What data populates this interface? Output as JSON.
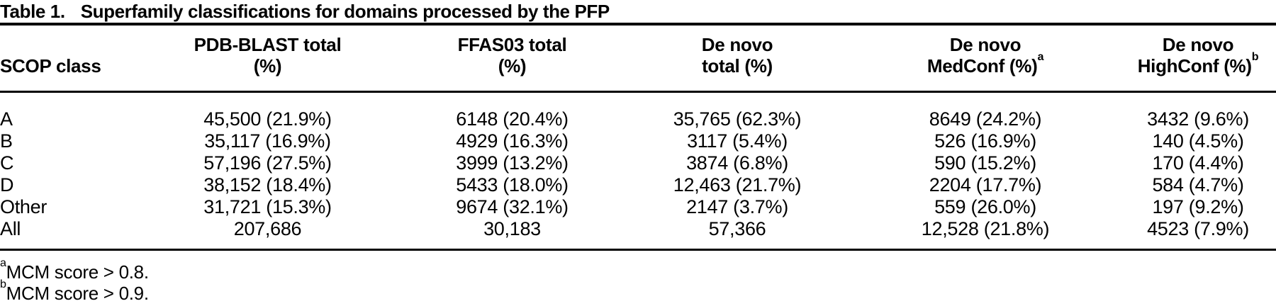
{
  "colors": {
    "background": "#ffffff",
    "text": "#000000",
    "rule": "#000000"
  },
  "title": {
    "label": "Table 1.",
    "text": "Superfamily classifications for domains processed by the PFP"
  },
  "table": {
    "header": {
      "scop": {
        "line2": "SCOP class"
      },
      "pdb": {
        "line1": "PDB-BLAST total",
        "line2": "(%)"
      },
      "ffas": {
        "line1": "FFAS03 total",
        "line2": "(%)"
      },
      "dn_total": {
        "line1": "De novo",
        "line2": "total (%)"
      },
      "dn_med": {
        "line1": "De novo",
        "line2": "MedConf (%)",
        "sup": "a"
      },
      "dn_high": {
        "line1": "De novo",
        "line2": "HighConf (%)",
        "sup": "b"
      }
    },
    "rows": [
      {
        "scop": "A",
        "pdb": "45,500 (21.9%)",
        "ffas": "6148 (20.4%)",
        "dn_total": "35,765 (62.3%)",
        "dn_med": "8649 (24.2%)",
        "dn_high": "3432 (9.6%)"
      },
      {
        "scop": "B",
        "pdb": "35,117 (16.9%)",
        "ffas": "4929 (16.3%)",
        "dn_total": "3117 (5.4%)",
        "dn_med": "526 (16.9%)",
        "dn_high": "140 (4.5%)"
      },
      {
        "scop": "C",
        "pdb": "57,196 (27.5%)",
        "ffas": "3999 (13.2%)",
        "dn_total": "3874 (6.8%)",
        "dn_med": "590 (15.2%)",
        "dn_high": "170 (4.4%)"
      },
      {
        "scop": "D",
        "pdb": "38,152 (18.4%)",
        "ffas": "5433 (18.0%)",
        "dn_total": "12,463 (21.7%)",
        "dn_med": "2204 (17.7%)",
        "dn_high": "584 (4.7%)"
      },
      {
        "scop": "Other",
        "pdb": "31,721 (15.3%)",
        "ffas": "9674 (32.1%)",
        "dn_total": "2147 (3.7%)",
        "dn_med": "559 (26.0%)",
        "dn_high": "197 (9.2%)"
      },
      {
        "scop": "All",
        "pdb": "207,686",
        "ffas": "30,183",
        "dn_total": "57,366",
        "dn_med": "12,528 (21.8%)",
        "dn_high": "4523 (7.9%)"
      }
    ]
  },
  "footnotes": [
    {
      "sup": "a",
      "text": "MCM score > 0.8."
    },
    {
      "sup": "b",
      "text": "MCM score > 0.9."
    }
  ]
}
